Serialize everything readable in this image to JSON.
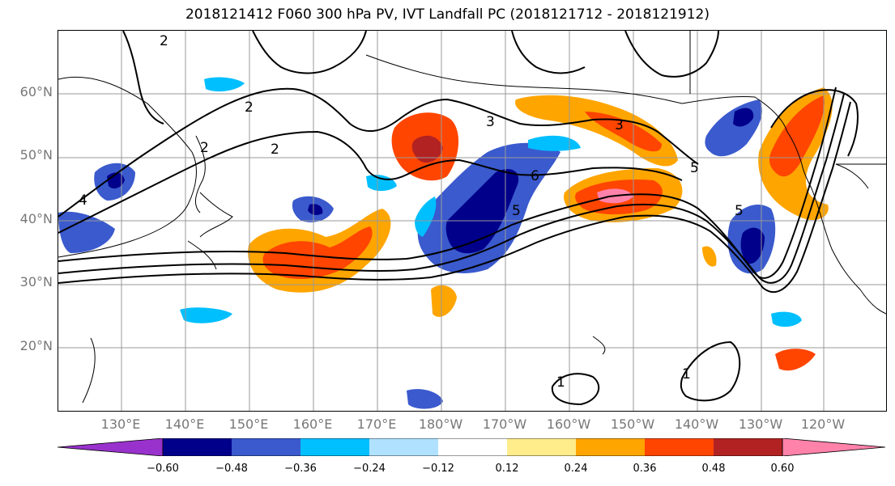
{
  "title": "2018121412 F060 300 hPa PV, IVT Landfall PC (2018121712 - 2018121912)",
  "map": {
    "latitude_labels": [
      "60°N",
      "50°N",
      "40°N",
      "30°N",
      "20°N"
    ],
    "longitude_labels": [
      "130°E",
      "140°E",
      "150°E",
      "160°E",
      "170°E",
      "180°W",
      "170°W",
      "160°W",
      "150°W",
      "140°W",
      "130°W",
      "120°W"
    ],
    "contour_labels": [
      "2",
      "2",
      "2",
      "2",
      "4",
      "3",
      "3",
      "6",
      "5",
      "5",
      "5",
      "1",
      "1"
    ]
  },
  "colorbar": {
    "ticks": [
      "−0.60",
      "−0.48",
      "−0.36",
      "−0.24",
      "−0.12",
      "0.12",
      "0.24",
      "0.36",
      "0.48",
      "0.60"
    ],
    "colors": [
      "#9932cc",
      "#00008b",
      "#3a5acd",
      "#00bfff",
      "#b0e2ff",
      "#ffffff",
      "#ffec8b",
      "#ffa500",
      "#ff4500",
      "#b22222",
      "#ff82ab"
    ]
  }
}
